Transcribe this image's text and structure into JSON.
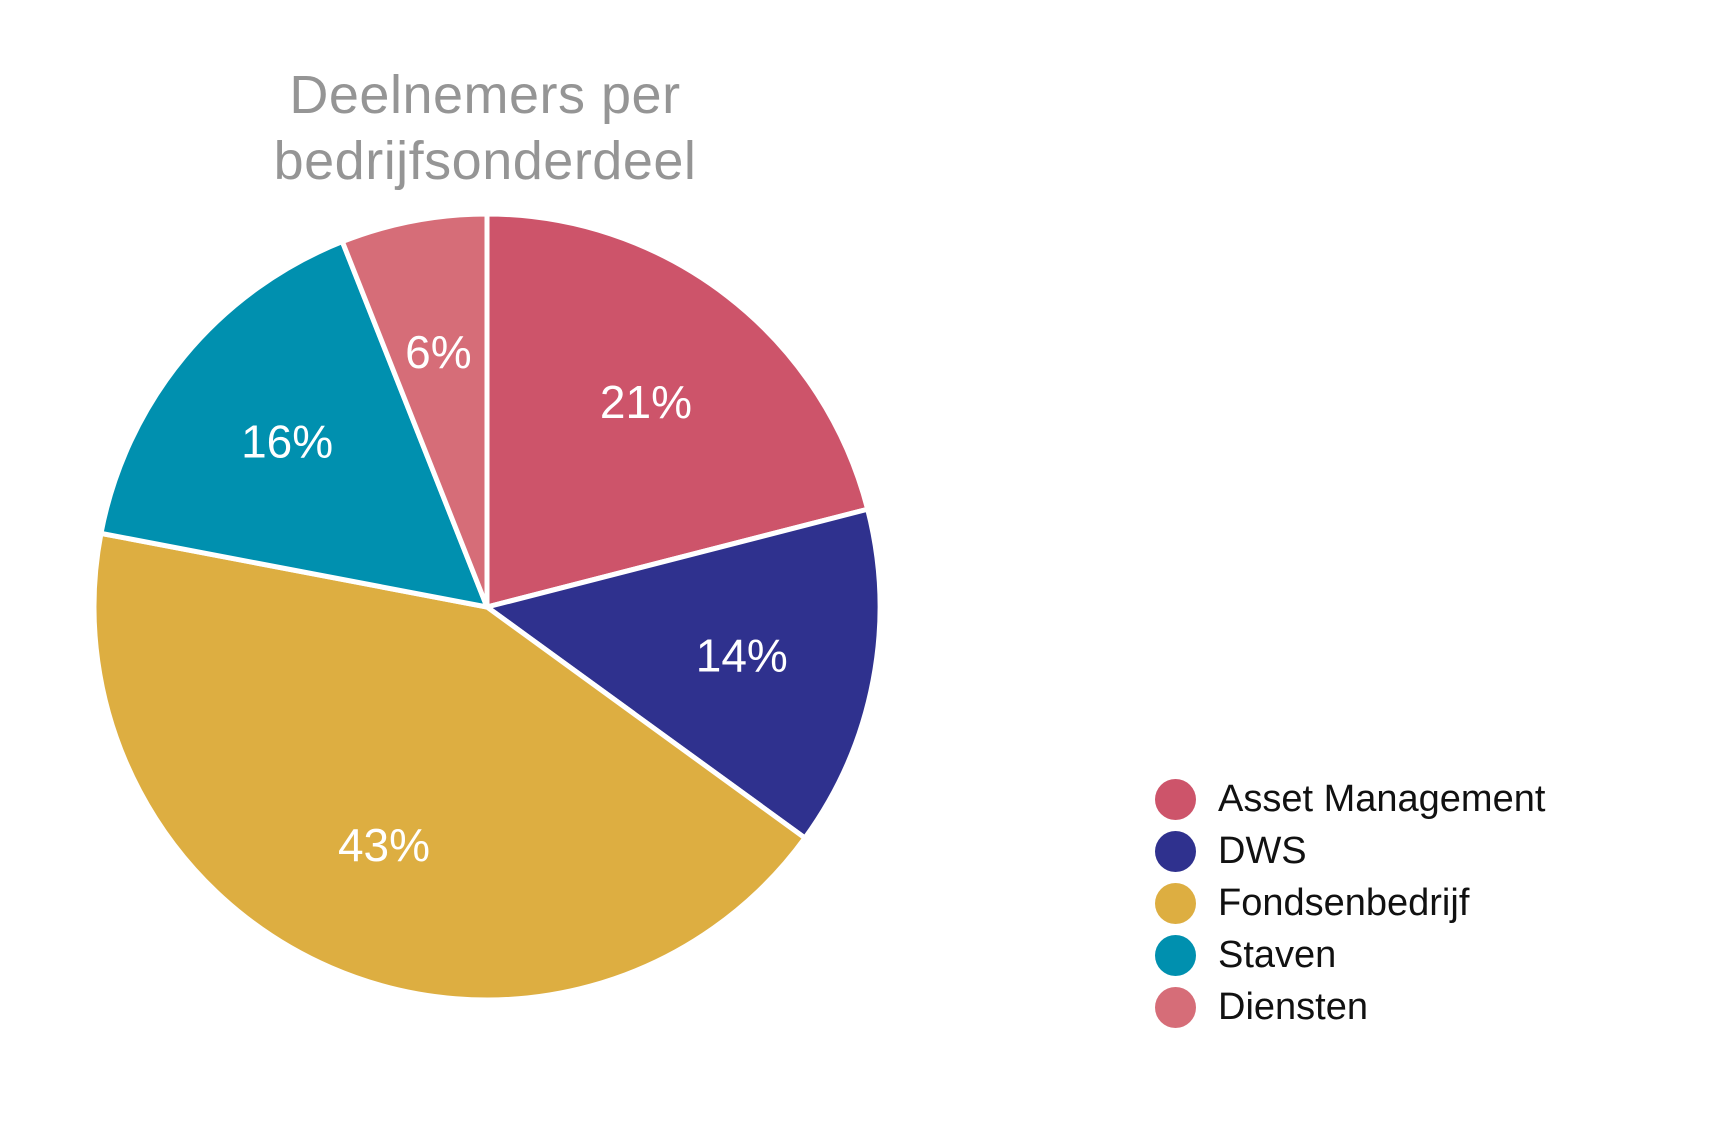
{
  "chart_data": {
    "type": "pie",
    "title": "Deelnemers per bedrijfsonderdeel",
    "title_lines": [
      "Deelnemers per",
      "bedrijfsonderdeel"
    ],
    "start_angle": "12 o'clock",
    "direction": "clockwise",
    "legend_position": "bottom-right",
    "slices": [
      {
        "name": "Asset Management",
        "value": 21,
        "label": "21%",
        "color": "#CD546A"
      },
      {
        "name": "DWS",
        "value": 14,
        "label": "14%",
        "color": "#2F318E"
      },
      {
        "name": "Fondsenbedrijf",
        "value": 43,
        "label": "43%",
        "color": "#DDAE41"
      },
      {
        "name": "Staven",
        "value": 16,
        "label": "16%",
        "color": "#0090AF"
      },
      {
        "name": "Diensten",
        "value": 6,
        "label": "6%",
        "color": "#D66D78"
      }
    ]
  }
}
